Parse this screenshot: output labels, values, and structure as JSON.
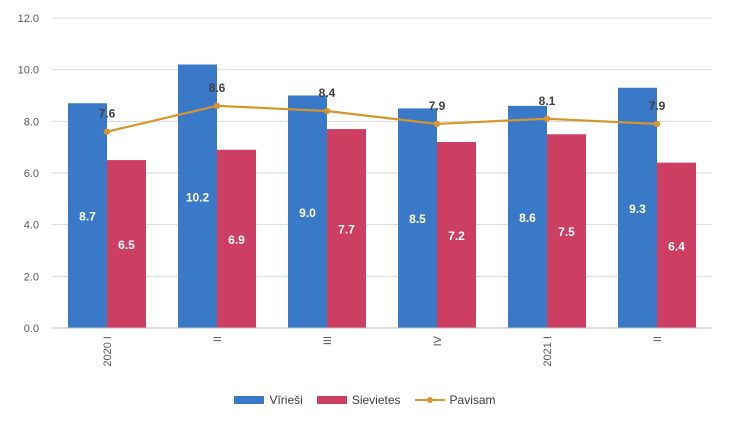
{
  "chart_data": {
    "type": "bar",
    "categories": [
      "2020 I",
      "II",
      "III",
      "IV",
      "2021 I",
      "II"
    ],
    "series": [
      {
        "name": "Vīrieši",
        "type": "bar",
        "color": "#3a78c8",
        "values": [
          8.7,
          10.2,
          9.0,
          8.5,
          8.6,
          9.3
        ]
      },
      {
        "name": "Sievietes",
        "type": "bar",
        "color": "#cc3f62",
        "values": [
          6.5,
          6.9,
          7.7,
          7.2,
          7.5,
          6.4
        ]
      },
      {
        "name": "Pavisam",
        "type": "line",
        "color": "#d6962b",
        "values": [
          7.6,
          8.6,
          8.4,
          7.9,
          8.1,
          7.9
        ]
      }
    ],
    "y_ticks": [
      "0.0",
      "2.0",
      "4.0",
      "6.0",
      "8.0",
      "10.0",
      "12.0"
    ],
    "ylim": [
      0,
      12
    ],
    "grid": true,
    "legend_position": "bottom"
  }
}
